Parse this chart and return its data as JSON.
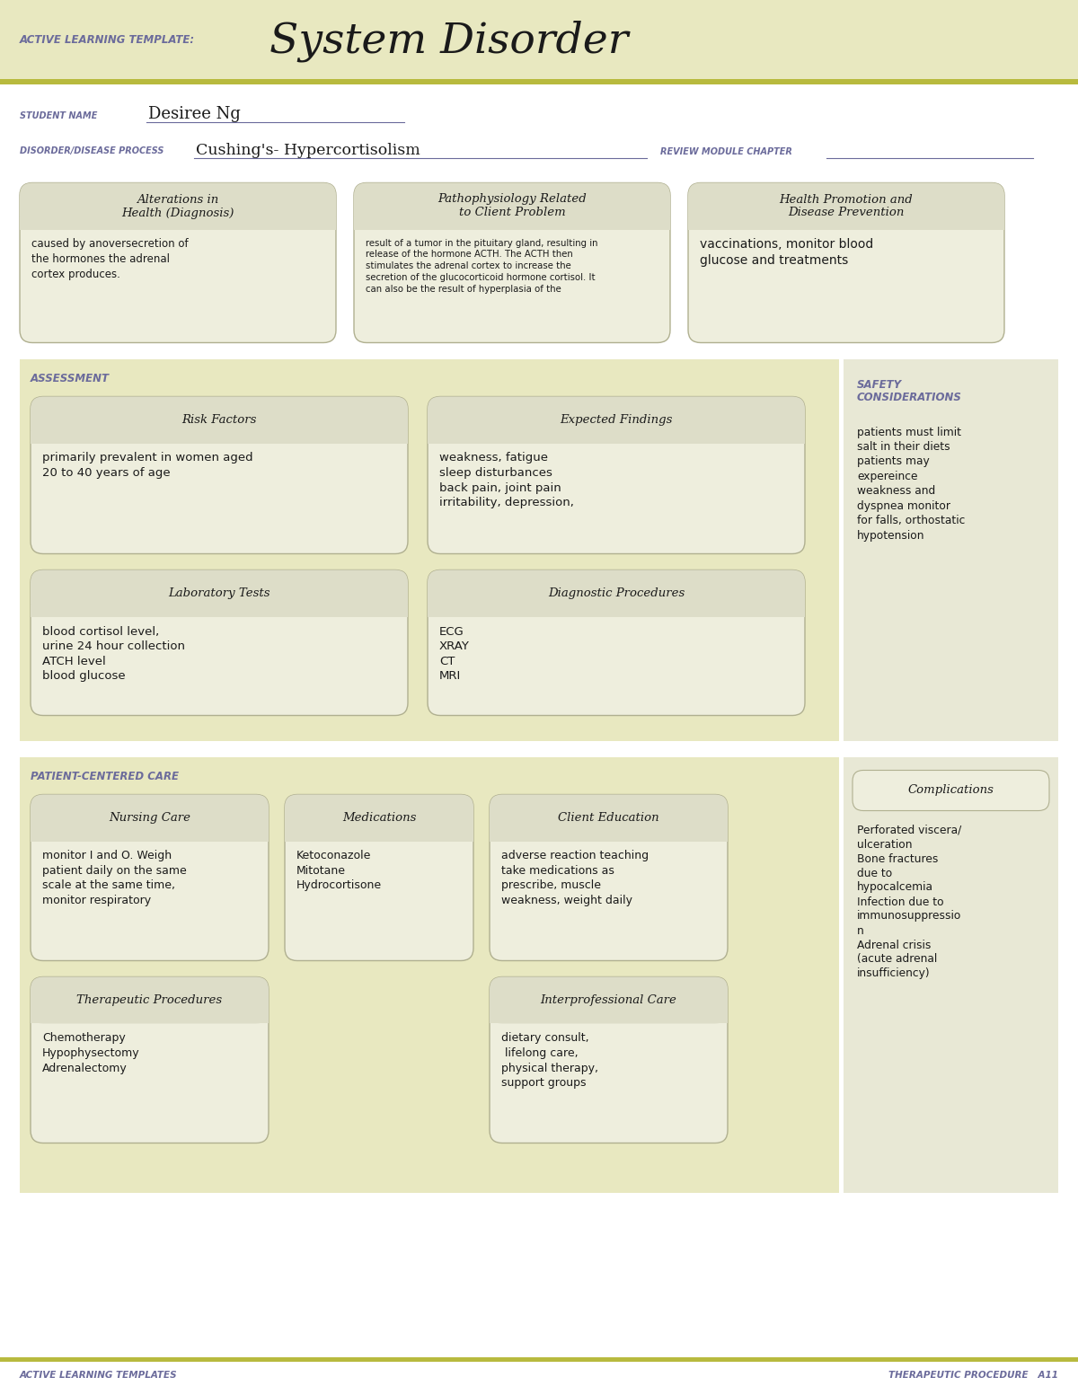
{
  "bg_color": "#f5f5e6",
  "white_bg": "#ffffff",
  "header_bg": "#e8e8c0",
  "olive_line": "#b8ba3e",
  "box_fill": "#eeeedd",
  "box_title_fill": "#ddddc8",
  "box_border": "#b0b090",
  "purple_text": "#6b6b9b",
  "dark_text": "#1a1a1a",
  "title_text": "System Disorder",
  "subtitle_label": "ACTIVE LEARNING TEMPLATE:",
  "student_label": "STUDENT NAME",
  "student_name": "Desiree Ng",
  "disorder_label": "DISORDER/DISEASE PROCESS",
  "disorder_name": "Cushing's- Hypercortisolism",
  "review_label": "REVIEW MODULE CHAPTER",
  "section1_title": "Alterations in\nHealth (Diagnosis)",
  "section1_body": "caused by anoversecretion of\nthe hormones the adrenal\ncortex produces.",
  "section2_title": "Pathophysiology Related\nto Client Problem",
  "section2_body": "result of a tumor in the pituitary gland, resulting in\nrelease of the hormone ACTH. The ACTH then\nstimulates the adrenal cortex to increase the\nsecretion of the glucocorticoid hormone cortisol. It\ncan also be the result of hyperplasia of the",
  "section3_title": "Health Promotion and\nDisease Prevention",
  "section3_body": "vaccinations, monitor blood\nglucose and treatments",
  "assessment_label": "ASSESSMENT",
  "safety_label": "SAFETY\nCONSIDERATIONS",
  "risk_title": "Risk Factors",
  "risk_body": "primarily prevalent in women aged\n20 to 40 years of age",
  "expected_title": "Expected Findings",
  "expected_body": "weakness, fatigue\nsleep disturbances\nback pain, joint pain\nirritability, depression,",
  "safety_body": "patients must limit\nsalt in their diets\npatients may\nexpereince\nweakness and\ndyspnea monitor\nfor falls, orthostatic\nhypotension",
  "lab_title": "Laboratory Tests",
  "lab_body": "blood cortisol level,\nurine 24 hour collection\nATCH level\nblood glucose",
  "diag_title": "Diagnostic Procedures",
  "diag_body": "ECG\nXRAY\nCT\nMRI",
  "patient_label": "PATIENT-CENTERED CARE",
  "nursing_title": "Nursing Care",
  "nursing_body": "monitor I and O. Weigh\npatient daily on the same\nscale at the same time,\nmonitor respiratory",
  "med_title": "Medications",
  "med_body": "Ketoconazole\nMitotane\nHydrocortisone",
  "client_title": "Client Education",
  "client_body": "adverse reaction teaching\ntake medications as\nprescribe, muscle\nweakness, weight daily",
  "complications_title": "Complications",
  "complications_body": "Perforated viscera/\nulceration\nBone fractures\ndue to\nhypocalcemia\nInfection due to\nimmunosuppressio\nn\nAdrenal crisis\n(acute adrenal\ninsufficiency)",
  "therapeutic_title": "Therapeutic Procedures",
  "therapeutic_body": "Chemotherapy\nHypophysectomy\nAdrenalectomy",
  "interpro_title": "Interprofessional Care",
  "interpro_body": "dietary consult,\n lifelong care,\nphysical therapy,\nsupport groups",
  "footer_left": "ACTIVE LEARNING TEMPLATES",
  "footer_right": "THERAPEUTIC PROCEDURE   A11"
}
